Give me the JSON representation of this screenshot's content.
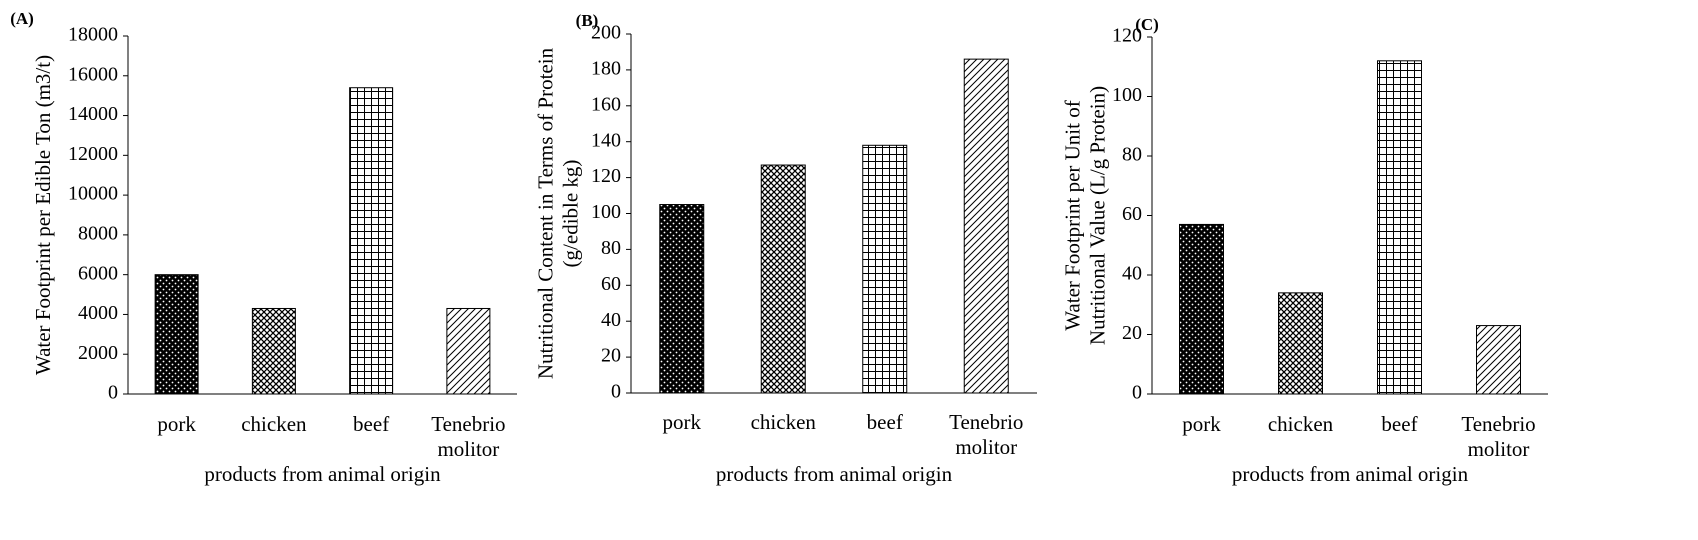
{
  "chart_data": [
    {
      "panel": "(A)",
      "type": "bar",
      "categories": [
        "pork",
        "chicken",
        "beef",
        "Tenebrio molitor"
      ],
      "values": [
        6000,
        4300,
        15400,
        4300
      ],
      "xlabel": "products from animal origin",
      "ylabel": [
        "Water Footprint per Edible Ton (m3/t)"
      ],
      "ylim": [
        0,
        18000
      ],
      "yticks": [
        0,
        2000,
        4000,
        6000,
        8000,
        10000,
        12000,
        14000,
        16000,
        18000
      ],
      "patterns": [
        "dots-on-black",
        "diamond-lattice",
        "square-grid",
        "diagonal-hatch"
      ],
      "grid": false,
      "legend": "none"
    },
    {
      "panel": "(B)",
      "type": "bar",
      "categories": [
        "pork",
        "chicken",
        "beef",
        "Tenebrio molitor"
      ],
      "values": [
        105,
        127,
        138,
        186
      ],
      "xlabel": "products from animal origin",
      "ylabel": [
        "Nutritional Content in Terms of Protein",
        "(g/edible kg)"
      ],
      "ylim": [
        0,
        200
      ],
      "yticks": [
        0,
        20,
        40,
        60,
        80,
        100,
        120,
        140,
        160,
        180,
        200
      ],
      "patterns": [
        "dots-on-black",
        "diamond-lattice",
        "square-grid",
        "diagonal-hatch"
      ],
      "grid": false,
      "legend": "none"
    },
    {
      "panel": "(C)",
      "type": "bar",
      "categories": [
        "pork",
        "chicken",
        "beef",
        "Tenebrio molitor"
      ],
      "values": [
        57,
        34,
        112,
        23
      ],
      "xlabel": "products from animal origin",
      "ylabel": [
        "Water Footprint per Unit of",
        "Nutritional Value (L/g Protein)"
      ],
      "ylim": [
        0,
        120
      ],
      "yticks": [
        0,
        20,
        40,
        60,
        80,
        100,
        120
      ],
      "patterns": [
        "dots-on-black",
        "diamond-lattice",
        "square-grid",
        "diagonal-hatch"
      ],
      "grid": false,
      "legend": "none"
    }
  ]
}
